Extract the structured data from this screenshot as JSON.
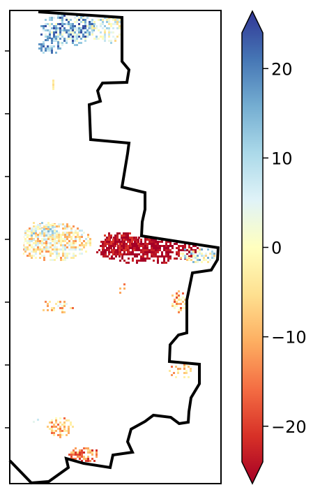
{
  "colorbar": {
    "ticks": [
      {
        "value": 20,
        "label": "20"
      },
      {
        "value": 10,
        "label": "10"
      },
      {
        "value": 0,
        "label": "0"
      },
      {
        "value": -10,
        "label": "−10"
      },
      {
        "value": -20,
        "label": "−20"
      }
    ],
    "range": [
      -24,
      24
    ],
    "extend": "both",
    "colormap": [
      "#a50026",
      "#d73027",
      "#f46d43",
      "#fdae61",
      "#fee090",
      "#ffffbf",
      "#e0f3f8",
      "#abd9e9",
      "#74add1",
      "#4575b4",
      "#313695"
    ]
  },
  "map": {
    "boundary_color": "#000000",
    "background": "#ffffff",
    "patches": [
      {
        "region": "north",
        "tone": "positive"
      },
      {
        "region": "middle-west",
        "tone": "neutral-mixed"
      },
      {
        "region": "middle-east",
        "tone": "strong-negative"
      },
      {
        "region": "south",
        "tone": "negative-scattered"
      }
    ]
  }
}
